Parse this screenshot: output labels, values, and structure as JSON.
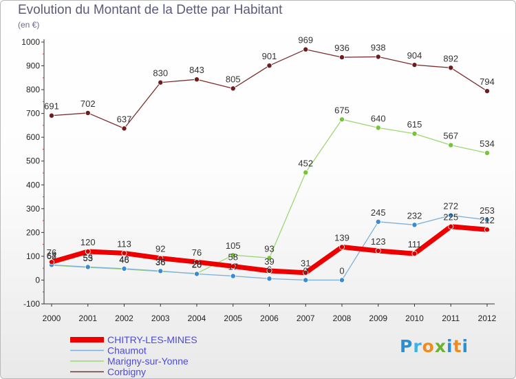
{
  "title": "Evolution du Montant de la Dette par Habitant",
  "subtitle": "(en €)",
  "logo": {
    "text": "Proxiti",
    "colors": [
      "#2a8fd4",
      "#3fb0e8",
      "#ef8c1f",
      "#6ab22f",
      "#2a8fd4",
      "#ef8c1f",
      "#2a8fd4"
    ]
  },
  "chart_data": {
    "type": "line",
    "x": [
      "2000",
      "2001",
      "2002",
      "2003",
      "2004",
      "2005",
      "2006",
      "2007",
      "2008",
      "2009",
      "2010",
      "2011",
      "2012"
    ],
    "y_ticks": [
      "-100",
      "0",
      "100",
      "200",
      "300",
      "400",
      "500",
      "600",
      "700",
      "800",
      "900",
      "1000"
    ],
    "ylim": [
      -100,
      1000
    ],
    "grid": false,
    "legend_position": "bottom-left",
    "series": [
      {
        "name": "Corbigny",
        "color": "#7b2c2c",
        "marker": "#6b1e1e",
        "width": 1.3,
        "values": [
          691,
          702,
          637,
          830,
          843,
          805,
          901,
          969,
          936,
          938,
          904,
          892,
          794
        ],
        "labels": [
          "691",
          "702",
          "637",
          "830",
          "843",
          "805",
          "901",
          "969",
          "936",
          "938",
          "904",
          "892",
          "794"
        ]
      },
      {
        "name": "Marigny-sur-Yonne",
        "color": "#9ad872",
        "marker": "#78c23c",
        "width": 1.3,
        "values": [
          62,
          53,
          46,
          36,
          28,
          105,
          93,
          452,
          675,
          640,
          615,
          567,
          534
        ],
        "labels": [
          "62",
          "53",
          "46",
          "36",
          "28",
          "105",
          "93",
          "452",
          "675",
          "640",
          "615",
          "567",
          "534"
        ]
      },
      {
        "name": "Chaumot",
        "color": "#7fb0d8",
        "marker": "#3c8ad0",
        "width": 1.3,
        "values": [
          64,
          55,
          48,
          38,
          26,
          17,
          6,
          0,
          0,
          245,
          232,
          272,
          253
        ],
        "labels": [
          "64",
          "55",
          "48",
          "38",
          "26",
          "17",
          "6",
          "0",
          "0",
          "245",
          "232",
          "272",
          "253"
        ]
      },
      {
        "name": "CHITRY-LES-MINES",
        "color": "#ee0000",
        "marker": "#d40000",
        "width": 7,
        "values": [
          76,
          120,
          113,
          92,
          76,
          58,
          39,
          31,
          139,
          123,
          111,
          225,
          212
        ],
        "labels": [
          "76",
          "120",
          "113",
          "92",
          "76",
          "58",
          "39",
          "31",
          "139",
          "123",
          "111",
          "225",
          "212"
        ]
      }
    ],
    "legend_order": [
      "CHITRY-LES-MINES",
      "Chaumot",
      "Marigny-sur-Yonne",
      "Corbigny"
    ]
  }
}
